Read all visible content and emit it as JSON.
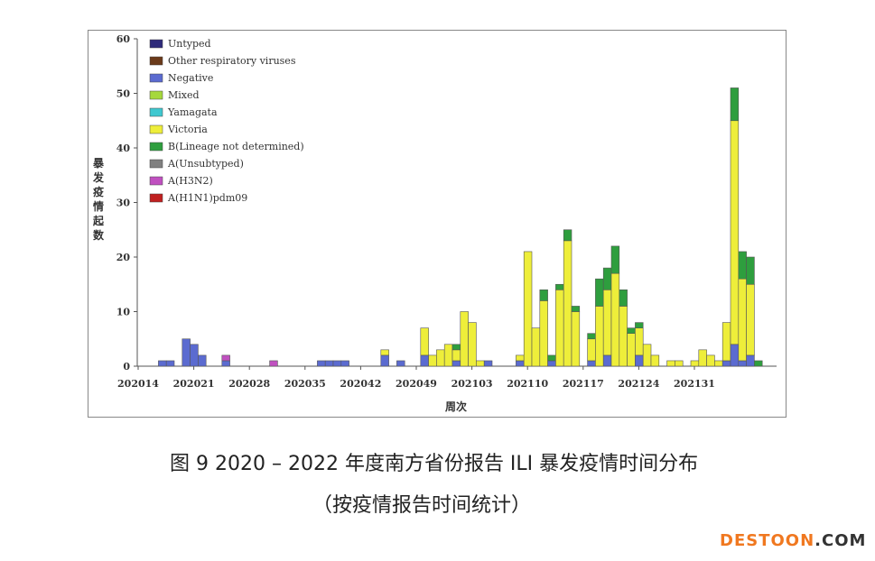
{
  "chart_data": {
    "type": "bar",
    "stacked": true,
    "ylabel": "暴发疫情起数",
    "xlabel": "周次",
    "ylim": [
      0,
      60
    ],
    "yticks": [
      0,
      10,
      20,
      30,
      40,
      50,
      60
    ],
    "xtick_labels": [
      "202014",
      "202021",
      "202028",
      "202035",
      "202042",
      "202049",
      "202103",
      "202110",
      "202117",
      "202124",
      "202131"
    ],
    "legend": [
      {
        "name": "Untyped",
        "color": "#2e2a7a"
      },
      {
        "name": "Other respiratory viruses",
        "color": "#6b3a1a"
      },
      {
        "name": "Negative",
        "color": "#5b6bd0"
      },
      {
        "name": "Mixed",
        "color": "#a6d83c"
      },
      {
        "name": "Yamagata",
        "color": "#3fc8d0"
      },
      {
        "name": "Victoria",
        "color": "#eeee3a"
      },
      {
        "name": "B(Lineage not determined)",
        "color": "#2e9e3e"
      },
      {
        "name": "A(Unsubtyped)",
        "color": "#808080"
      },
      {
        "name": "A(H3N2)",
        "color": "#c050c0"
      },
      {
        "name": "A(H1N1)pdm09",
        "color": "#c02020"
      }
    ],
    "legend_position": "top-left",
    "bars": [
      {
        "week_index": 3,
        "Negative": 1
      },
      {
        "week_index": 4,
        "Negative": 1
      },
      {
        "week_index": 6,
        "Negative": 5
      },
      {
        "week_index": 7,
        "Negative": 4
      },
      {
        "week_index": 8,
        "Negative": 2
      },
      {
        "week_index": 11,
        "Negative": 1,
        "A(H3N2)": 1
      },
      {
        "week_index": 17,
        "A(H3N2)": 1
      },
      {
        "week_index": 23,
        "Negative": 1
      },
      {
        "week_index": 24,
        "Negative": 1
      },
      {
        "week_index": 25,
        "Negative": 1
      },
      {
        "week_index": 26,
        "Negative": 1
      },
      {
        "week_index": 31,
        "Negative": 2,
        "Victoria": 1
      },
      {
        "week_index": 33,
        "Negative": 1
      },
      {
        "week_index": 36,
        "Negative": 2,
        "Victoria": 5
      },
      {
        "week_index": 37,
        "Victoria": 2
      },
      {
        "week_index": 38,
        "Victoria": 3
      },
      {
        "week_index": 39,
        "Victoria": 4
      },
      {
        "week_index": 40,
        "Negative": 1,
        "Victoria": 2,
        "B(Lineage not determined)": 1
      },
      {
        "week_index": 41,
        "Victoria": 10
      },
      {
        "week_index": 42,
        "Victoria": 8
      },
      {
        "week_index": 43,
        "Victoria": 1
      },
      {
        "week_index": 44,
        "Negative": 1
      },
      {
        "week_index": 48,
        "Negative": 1,
        "Victoria": 1
      },
      {
        "week_index": 49,
        "Victoria": 21
      },
      {
        "week_index": 50,
        "Victoria": 7
      },
      {
        "week_index": 51,
        "Victoria": 12,
        "B(Lineage not determined)": 2
      },
      {
        "week_index": 52,
        "Negative": 1,
        "B(Lineage not determined)": 1
      },
      {
        "week_index": 53,
        "Victoria": 14,
        "B(Lineage not determined)": 1
      },
      {
        "week_index": 54,
        "Victoria": 23,
        "B(Lineage not determined)": 2
      },
      {
        "week_index": 55,
        "Victoria": 10,
        "B(Lineage not determined)": 1
      },
      {
        "week_index": 57,
        "Negative": 1,
        "Victoria": 4,
        "B(Lineage not determined)": 1
      },
      {
        "week_index": 58,
        "Victoria": 11,
        "B(Lineage not determined)": 5
      },
      {
        "week_index": 59,
        "Negative": 2,
        "Victoria": 12,
        "B(Lineage not determined)": 4
      },
      {
        "week_index": 60,
        "Victoria": 17,
        "B(Lineage not determined)": 5
      },
      {
        "week_index": 61,
        "Victoria": 11,
        "B(Lineage not determined)": 3
      },
      {
        "week_index": 62,
        "Victoria": 6,
        "B(Lineage not determined)": 1
      },
      {
        "week_index": 63,
        "Negative": 2,
        "Victoria": 5,
        "B(Lineage not determined)": 1
      },
      {
        "week_index": 64,
        "Victoria": 4
      },
      {
        "week_index": 65,
        "Victoria": 2
      },
      {
        "week_index": 67,
        "Victoria": 1
      },
      {
        "week_index": 68,
        "Victoria": 1
      },
      {
        "week_index": 70,
        "Victoria": 1
      },
      {
        "week_index": 71,
        "Victoria": 3
      },
      {
        "week_index": 72,
        "Victoria": 2
      },
      {
        "week_index": 73,
        "Victoria": 1
      },
      {
        "week_index": 74,
        "Negative": 1,
        "Victoria": 7
      },
      {
        "week_index": 75,
        "Negative": 4,
        "Victoria": 41,
        "B(Lineage not determined)": 6
      },
      {
        "week_index": 76,
        "Negative": 1,
        "Victoria": 15,
        "B(Lineage not determined)": 5
      },
      {
        "week_index": 77,
        "Negative": 2,
        "Victoria": 13,
        "B(Lineage not determined)": 5
      },
      {
        "week_index": 78,
        "B(Lineage not determined)": 1
      }
    ]
  },
  "caption": {
    "line1": "图 9  2020 – 2022 年度南方省份报告 ILI 暴发疫情时间分布",
    "line2": "（按疫情报告时间统计）"
  },
  "watermark": {
    "text1": "DESTOON",
    "text2": ".COM",
    "color1": "#f07820",
    "color2": "#333333"
  }
}
